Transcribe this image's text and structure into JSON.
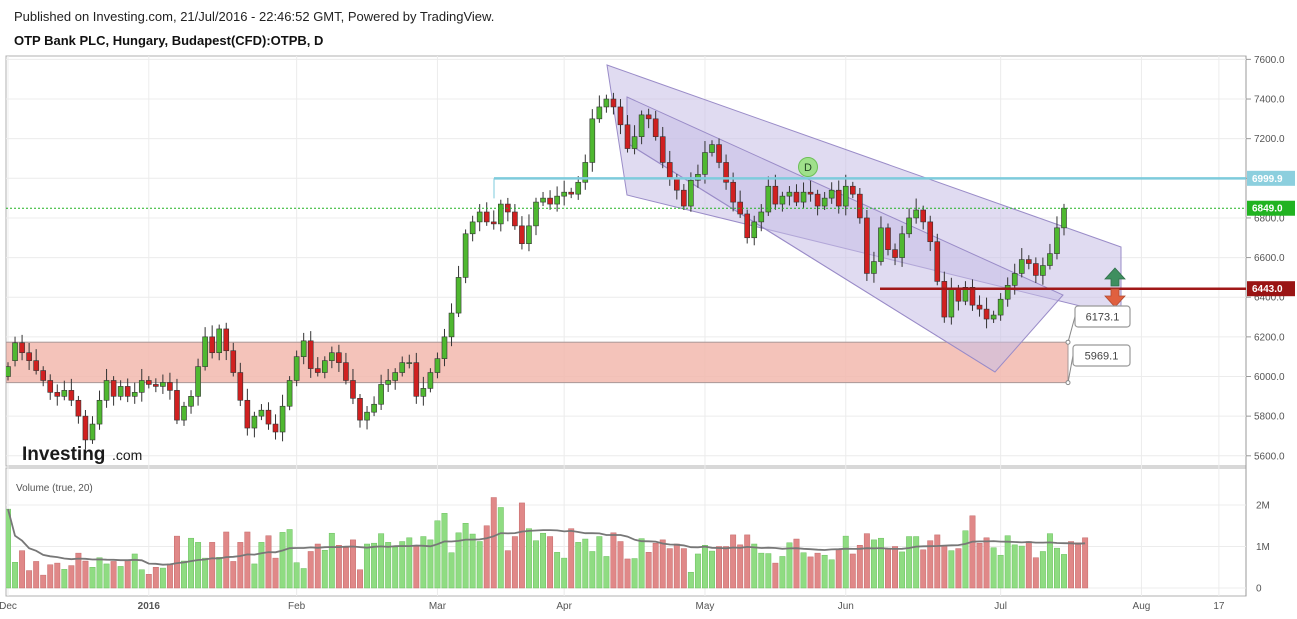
{
  "header": {
    "published": "Published on Investing.com, 21/Jul/2016 - 22:46:52 GMT, Powered by TradingView.",
    "title": "OTP Bank PLC, Hungary, Budapest(CFD):OTPB, D"
  },
  "logo": {
    "main": "Investing",
    "suffix": ".com"
  },
  "volume_panel": {
    "label": "Volume (true, 20)"
  },
  "colors": {
    "up": "#4fb830",
    "down": "#d02020",
    "up_vol": "#8fdc82",
    "down_vol": "#e08888",
    "channel_fill": "#c6bde6",
    "channel_line": "#9a8cc8",
    "zone_fill": "#f2b8ae",
    "resistance": "#7ecbdc",
    "support": "#a01818",
    "last_price": "#21b321",
    "ma": "#777777"
  },
  "chart_data": {
    "type": "candlestick",
    "price_axis": {
      "min": 5500,
      "max": 7600,
      "ticks": [
        5600,
        5800,
        6000,
        6200,
        6400,
        6600,
        6800,
        7000,
        7200,
        7400,
        7600
      ],
      "tick_labels": [
        "5600.0",
        "5800.0",
        "6000.0",
        "6200.0",
        "6400.0",
        "6600.0",
        "6800.0",
        "7000.0",
        "7200.0",
        "7400.0",
        "7600.0"
      ]
    },
    "volume_axis": {
      "min": 0,
      "max": 2700000,
      "ticks": [
        0,
        1000000,
        2000000
      ],
      "tick_labels": [
        "0",
        "1M",
        "2M"
      ]
    },
    "x_labels": [
      {
        "label": "Dec",
        "index": 0,
        "bold": false
      },
      {
        "label": "2016",
        "index": 20,
        "bold": true
      },
      {
        "label": "Feb",
        "index": 41,
        "bold": false
      },
      {
        "label": "Mar",
        "index": 61,
        "bold": false
      },
      {
        "label": "Apr",
        "index": 79,
        "bold": false
      },
      {
        "label": "May",
        "index": 99,
        "bold": false
      },
      {
        "label": "Jun",
        "index": 119,
        "bold": false
      },
      {
        "label": "Jul",
        "index": 141,
        "bold": false
      },
      {
        "label": "Aug",
        "index": 161,
        "bold": false
      },
      {
        "label": "17",
        "index": 172,
        "bold": false
      }
    ],
    "closes": [
      6050,
      6170,
      6120,
      6080,
      6030,
      5980,
      5920,
      5900,
      5930,
      5880,
      5800,
      5680,
      5760,
      5880,
      5980,
      5900,
      5950,
      5900,
      5920,
      5980,
      5960,
      5950,
      5970,
      5930,
      5780,
      5850,
      5900,
      6050,
      6200,
      6120,
      6240,
      6130,
      6020,
      5880,
      5740,
      5800,
      5830,
      5760,
      5720,
      5850,
      5980,
      6100,
      6180,
      6040,
      6020,
      6080,
      6120,
      6070,
      5980,
      5890,
      5780,
      5820,
      5860,
      5960,
      5980,
      6020,
      6070,
      6070,
      5900,
      5940,
      6020,
      6090,
      6200,
      6320,
      6500,
      6720,
      6780,
      6830,
      6780,
      6770,
      6870,
      6830,
      6760,
      6670,
      6760,
      6880,
      6900,
      6870,
      6910,
      6930,
      6920,
      6980,
      7080,
      7300,
      7360,
      7400,
      7360,
      7270,
      7150,
      7210,
      7320,
      7300,
      7210,
      7080,
      7000,
      6940,
      6860,
      6990,
      7020,
      7130,
      7170,
      7080,
      6980,
      6880,
      6820,
      6700,
      6780,
      6830,
      6960,
      6870,
      6910,
      6930,
      6880,
      6930,
      6920,
      6860,
      6900,
      6940,
      6860,
      6960,
      6920,
      6800,
      6520,
      6580,
      6750,
      6640,
      6600,
      6720,
      6800,
      6840,
      6780,
      6680,
      6480,
      6300,
      6440,
      6380,
      6450,
      6360,
      6340,
      6290,
      6310,
      6390,
      6460,
      6520,
      6590,
      6570,
      6510,
      6560,
      6620,
      6750,
      6849
    ],
    "opens": [
      6000,
      6080,
      6170,
      6120,
      6080,
      6030,
      5980,
      5920,
      5900,
      5930,
      5880,
      5800,
      5680,
      5760,
      5880,
      5980,
      5900,
      5950,
      5900,
      5920,
      5980,
      5960,
      5950,
      5970,
      5930,
      5780,
      5850,
      5900,
      6050,
      6200,
      6120,
      6240,
      6130,
      6020,
      5880,
      5740,
      5800,
      5830,
      5760,
      5720,
      5850,
      5980,
      6100,
      6180,
      6040,
      6020,
      6080,
      6120,
      6070,
      5980,
      5890,
      5780,
      5820,
      5860,
      5960,
      5980,
      6020,
      6070,
      6070,
      5900,
      5940,
      6020,
      6090,
      6200,
      6320,
      6500,
      6720,
      6780,
      6830,
      6780,
      6770,
      6870,
      6830,
      6760,
      6670,
      6760,
      6880,
      6900,
      6870,
      6910,
      6930,
      6920,
      6980,
      7080,
      7300,
      7360,
      7400,
      7360,
      7270,
      7150,
      7210,
      7320,
      7300,
      7210,
      7080,
      7000,
      6940,
      6860,
      6990,
      7020,
      7130,
      7170,
      7080,
      6980,
      6880,
      6820,
      6700,
      6780,
      6830,
      6960,
      6870,
      6910,
      6930,
      6880,
      6930,
      6920,
      6860,
      6900,
      6940,
      6860,
      6960,
      6920,
      6800,
      6520,
      6580,
      6750,
      6640,
      6600,
      6720,
      6800,
      6840,
      6780,
      6680,
      6480,
      6300,
      6440,
      6380,
      6450,
      6360,
      6340,
      6290,
      6310,
      6390,
      6460,
      6520,
      6590,
      6570,
      6510,
      6560,
      6620,
      6750
    ],
    "volumes": [
      1900000,
      620000,
      900000,
      420000,
      640000,
      310000,
      560000,
      600000,
      450000,
      540000,
      840000,
      650000,
      500000,
      730000,
      580000,
      640000,
      520000,
      670000,
      820000,
      440000,
      330000,
      500000,
      480000,
      580000,
      1250000,
      650000,
      1200000,
      1100000,
      720000,
      1100000,
      740000,
      1350000,
      640000,
      1100000,
      1350000,
      580000,
      1100000,
      1260000,
      720000,
      1340000,
      1410000,
      610000,
      470000,
      880000,
      1060000,
      910000,
      1320000,
      1030000,
      970000,
      1160000,
      440000,
      1060000,
      1080000,
      1310000,
      1100000,
      980000,
      1120000,
      1210000,
      1000000,
      1240000,
      1160000,
      1620000,
      1800000,
      850000,
      1330000,
      1560000,
      1300000,
      1120000,
      1500000,
      2180000,
      1940000,
      900000,
      1240000,
      2050000,
      1430000,
      1140000,
      1320000,
      1240000,
      860000,
      720000,
      1430000,
      1100000,
      1180000,
      880000,
      1240000,
      760000,
      1330000,
      1120000,
      700000,
      710000,
      1190000,
      860000,
      1080000,
      1160000,
      950000,
      1060000,
      950000,
      380000,
      820000,
      1030000,
      890000,
      1000000,
      1000000,
      1280000,
      1040000,
      1280000,
      1060000,
      840000,
      830000,
      600000,
      760000,
      1090000,
      1180000,
      850000,
      750000,
      840000,
      790000,
      680000,
      920000,
      1250000,
      820000,
      1030000,
      1310000,
      1160000,
      1200000,
      960000,
      1000000,
      870000,
      1240000,
      1240000,
      920000,
      1140000,
      1280000,
      1010000,
      900000,
      950000,
      1380000,
      1740000,
      1080000,
      1210000,
      970000,
      790000,
      1260000,
      1040000,
      1010000,
      1120000,
      730000,
      880000,
      1310000,
      960000,
      810000,
      1120000,
      1090000,
      1210000
    ],
    "last_price": 6849.0,
    "last_price_label": "6849.0",
    "resistance_level": 6999.9,
    "resistance_label": "6999.9",
    "support_level": 6443.0,
    "support_label": "6443.0",
    "zone_top": 6173.1,
    "zone_top_label": "6173.1",
    "zone_bottom": 5969.1,
    "zone_bottom_label": "5969.1",
    "marker_label": "D"
  }
}
